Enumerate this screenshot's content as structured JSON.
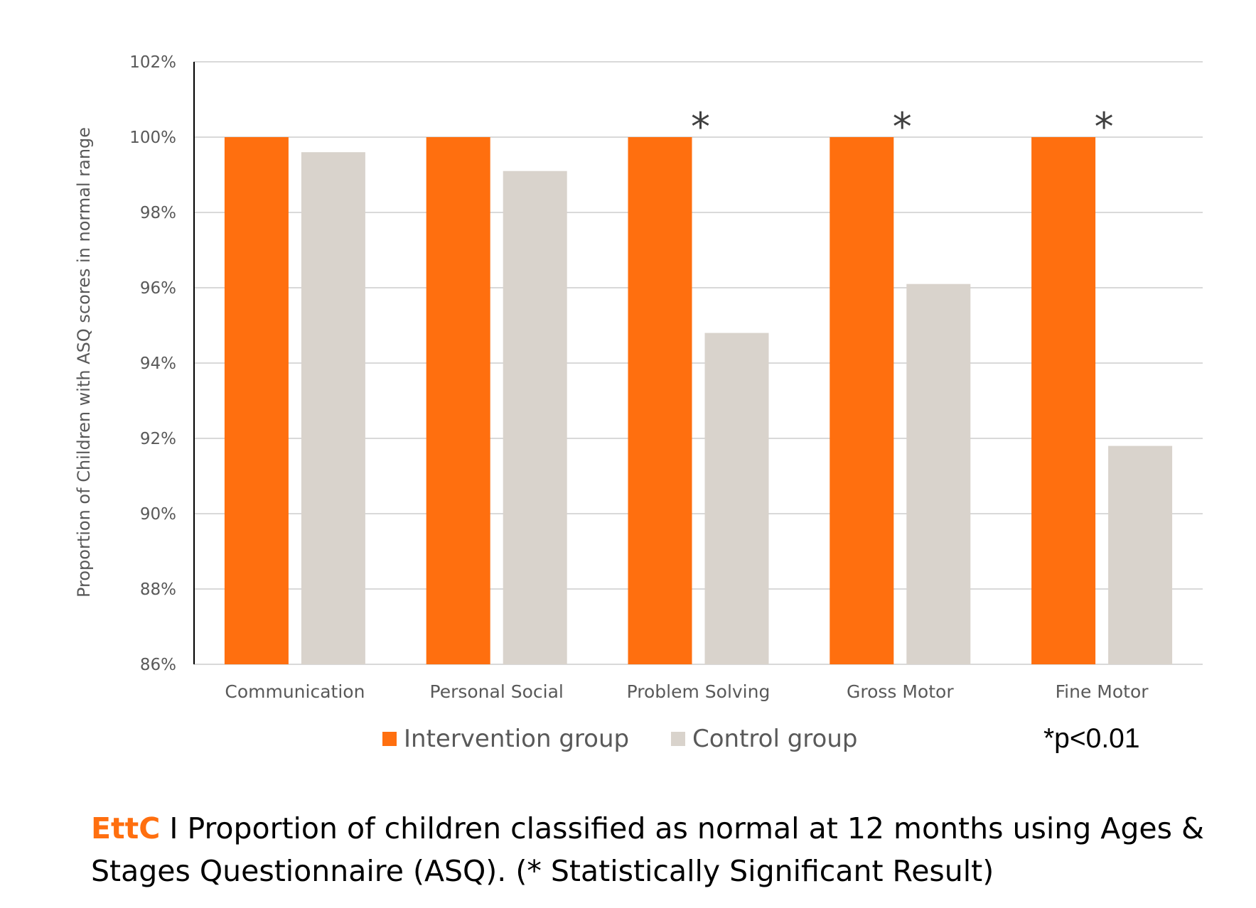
{
  "chart_data": {
    "type": "bar",
    "categories": [
      "Communication",
      "Personal Social",
      "Problem Solving",
      "Gross Motor",
      "Fine Motor"
    ],
    "series": [
      {
        "name": "Intervention group",
        "values": [
          100,
          100,
          100,
          100,
          100
        ],
        "color": "#ff6f0f"
      },
      {
        "name": "Control group",
        "values": [
          99.6,
          99.1,
          94.8,
          96.1,
          91.8
        ],
        "color": "#d9d3cc"
      }
    ],
    "significant": [
      false,
      false,
      true,
      true,
      true
    ],
    "significance_marker": "*",
    "ylabel": "Proportion of Children with ASQ scores in normal range",
    "xlabel": "",
    "ylim": [
      86,
      102
    ],
    "yticks": [
      "86%",
      "88%",
      "90%",
      "92%",
      "94%",
      "96%",
      "98%",
      "100%",
      "102%"
    ],
    "grid": true,
    "legend_position": "bottom"
  },
  "legend": {
    "intervention_label": "Intervention group",
    "control_label": "Control group"
  },
  "pvalue_note": "*p<0.01",
  "caption": {
    "brand": "EttC",
    "text": " I Proportion of children classified as normal at 12 months using Ages & Stages Questionnaire (ASQ). (* Statistically Significant Result)"
  }
}
